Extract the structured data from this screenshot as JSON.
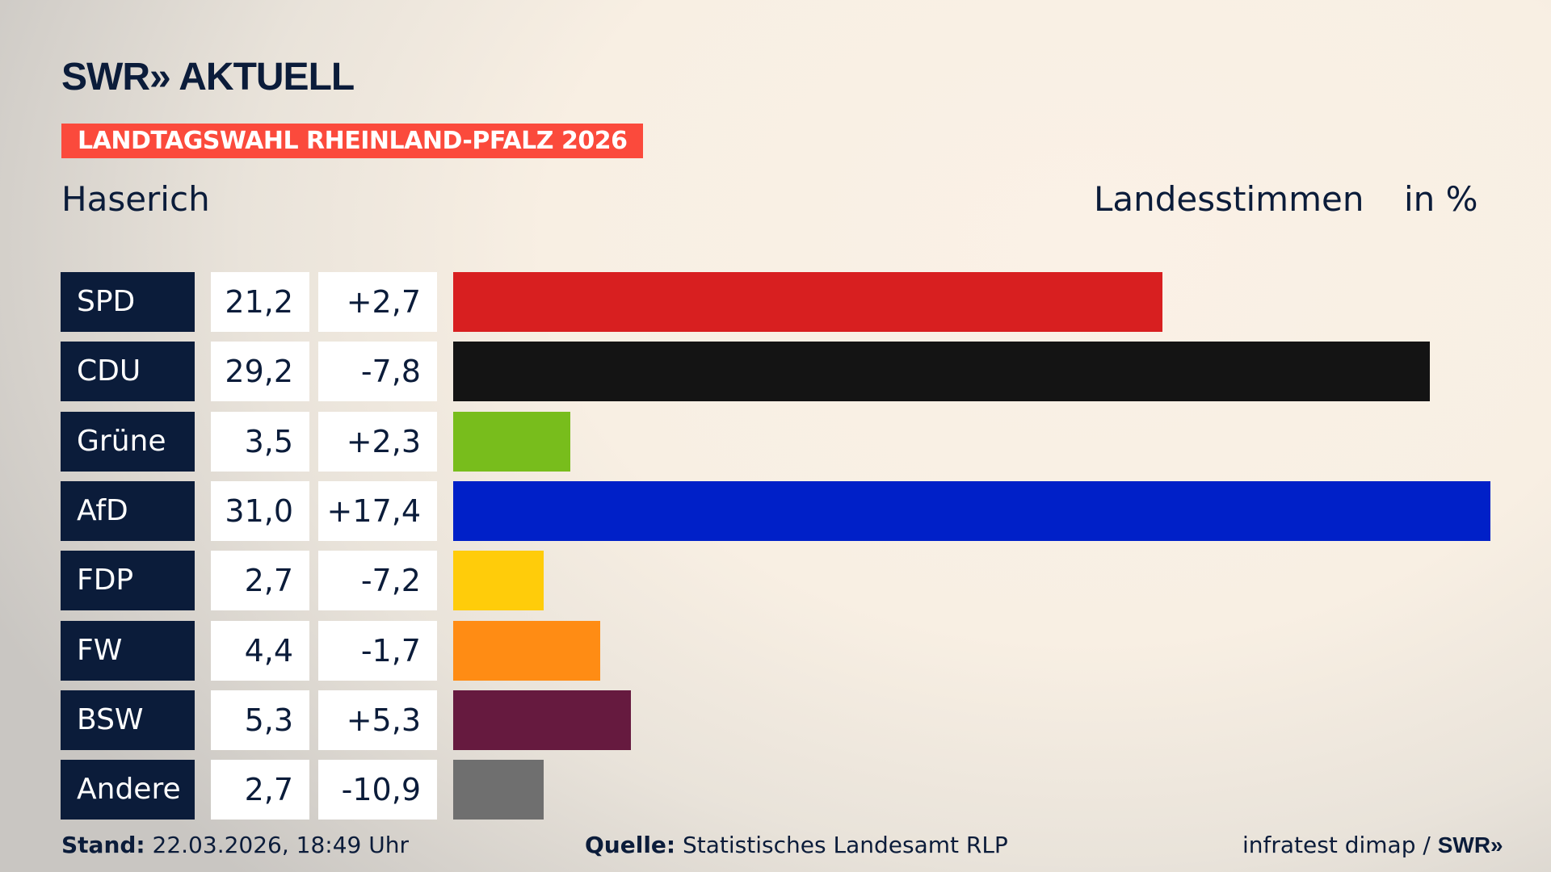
{
  "logo": "SWR» AKTUELL",
  "banner": "LANDTAGSWAHL RHEINLAND-PFALZ 2026",
  "location": "Haserich",
  "header_label": "Landesstimmen",
  "header_unit": "in %",
  "chart_data": {
    "type": "bar",
    "orientation": "horizontal",
    "categories": [
      "SPD",
      "CDU",
      "Grüne",
      "AfD",
      "FDP",
      "FW",
      "BSW",
      "Andere"
    ],
    "values": [
      21.2,
      29.2,
      3.5,
      31.0,
      2.7,
      4.4,
      5.3,
      2.7
    ],
    "value_labels": [
      "21,2",
      "29,2",
      "3,5",
      "31,0",
      "2,7",
      "4,4",
      "5,3",
      "2,7"
    ],
    "diff_labels": [
      "+2,7",
      "-7,8",
      "+2,3",
      "+17,4",
      "-7,2",
      "-1,7",
      "+5,3",
      "-10,9"
    ],
    "colors": [
      "#d81f20",
      "#141414",
      "#78bd1c",
      "#0020c8",
      "#ffcc0a",
      "#ff8c14",
      "#661a3f",
      "#6f6f6f"
    ]
  },
  "footer": {
    "stand_label": "Stand:",
    "stand_value": "22.03.2026, 18:49 Uhr",
    "source_label": "Quelle:",
    "source_value": "Statistisches Landesamt RLP",
    "credit": "infratest dimap / ",
    "credit_logo": "SWR»"
  }
}
